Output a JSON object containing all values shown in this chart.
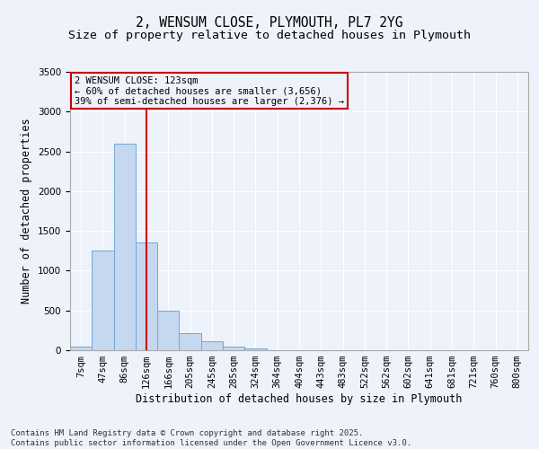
{
  "title_line1": "2, WENSUM CLOSE, PLYMOUTH, PL7 2YG",
  "title_line2": "Size of property relative to detached houses in Plymouth",
  "xlabel": "Distribution of detached houses by size in Plymouth",
  "ylabel": "Number of detached properties",
  "categories": [
    "7sqm",
    "47sqm",
    "86sqm",
    "126sqm",
    "166sqm",
    "205sqm",
    "245sqm",
    "285sqm",
    "324sqm",
    "364sqm",
    "404sqm",
    "443sqm",
    "483sqm",
    "522sqm",
    "562sqm",
    "602sqm",
    "641sqm",
    "681sqm",
    "721sqm",
    "760sqm",
    "800sqm"
  ],
  "values": [
    50,
    1250,
    2600,
    1350,
    500,
    215,
    110,
    50,
    20,
    5,
    5,
    5,
    5,
    0,
    0,
    0,
    0,
    0,
    0,
    0,
    0
  ],
  "bar_color": "#c5d8f0",
  "bar_edge_color": "#6fa8d6",
  "vline_x_index": 3,
  "vline_color": "#cc0000",
  "annotation_text": "2 WENSUM CLOSE: 123sqm\n← 60% of detached houses are smaller (3,656)\n39% of semi-detached houses are larger (2,376) →",
  "annotation_box_color": "#cc0000",
  "ylim": [
    0,
    3500
  ],
  "yticks": [
    0,
    500,
    1000,
    1500,
    2000,
    2500,
    3000,
    3500
  ],
  "background_color": "#eef2fa",
  "grid_color": "#ffffff",
  "footer_line1": "Contains HM Land Registry data © Crown copyright and database right 2025.",
  "footer_line2": "Contains public sector information licensed under the Open Government Licence v3.0.",
  "title_fontsize": 10.5,
  "subtitle_fontsize": 9.5,
  "axis_label_fontsize": 8.5,
  "tick_fontsize": 7.5,
  "annotation_fontsize": 7.5,
  "footer_fontsize": 6.5
}
